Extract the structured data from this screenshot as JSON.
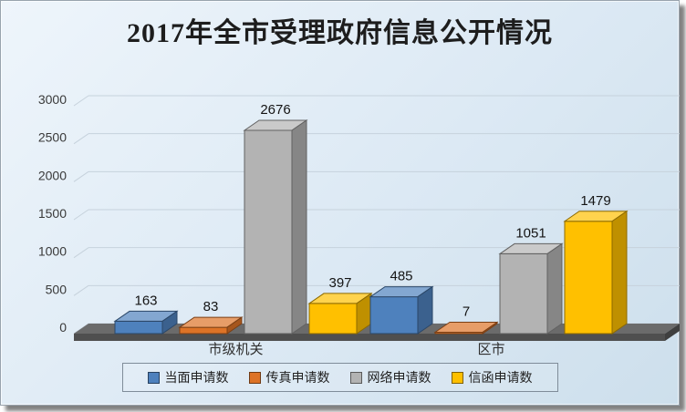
{
  "title": "2017年全市受理政府信息公开情况",
  "chart_data": {
    "type": "bar",
    "style": "3d-clustered-column",
    "title": "2017年全市受理政府信息公开情况",
    "categories": [
      "市级机关",
      "区市"
    ],
    "series": [
      {
        "name": "当面申请数",
        "color": "#4e81bd",
        "values": [
          163,
          485
        ]
      },
      {
        "name": "传真申请数",
        "color": "#dd7327",
        "values": [
          83,
          7
        ]
      },
      {
        "name": "网络申请数",
        "color": "#b3b3b3",
        "values": [
          2676,
          1051
        ]
      },
      {
        "name": "信函申请数",
        "color": "#ffc000",
        "values": [
          397,
          1479
        ]
      }
    ],
    "ylim": [
      0,
      3000
    ],
    "yticks": [
      0,
      500,
      1000,
      1500,
      2000,
      2500,
      3000
    ],
    "grid": true,
    "legend_position": "bottom",
    "data_labels": true,
    "xlabel": "",
    "ylabel": ""
  },
  "colors": {
    "gridline": "#c6d2dc",
    "floor_top": "#6b6b6b",
    "floor_front": "#4f4f4f",
    "floor_side": "#3f3f3f"
  }
}
